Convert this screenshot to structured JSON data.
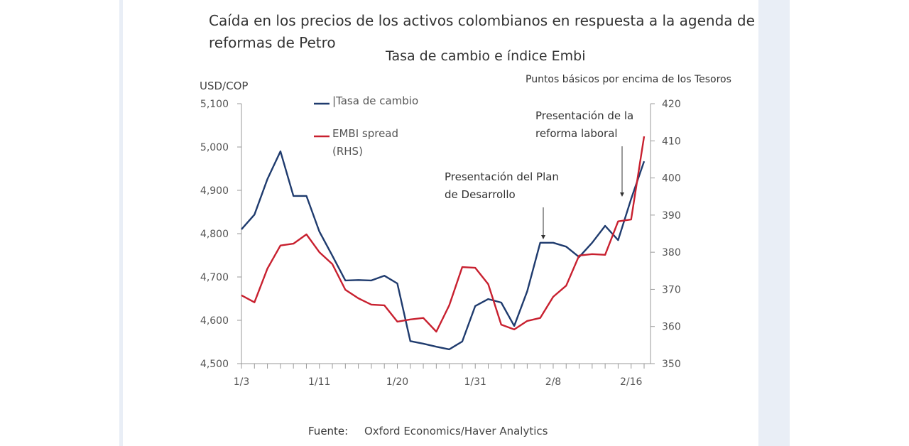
{
  "chart_data": {
    "type": "line",
    "title": "Caída en los precios de los activos colombianos en respuesta a la agenda de reformas de Petro",
    "subtitle": "Tasa de cambio e índice Embi",
    "ylabel_left": "USD/COP",
    "ylabel_right": "Puntos básicos por encima de los Tesoros",
    "ylim_left": [
      4500,
      5100
    ],
    "yticks_left": [
      "4,500",
      "4,600",
      "4,700",
      "4,800",
      "4,900",
      "5,000",
      "5,100"
    ],
    "ylim_right": [
      350,
      420
    ],
    "yticks_right": [
      "350",
      "360",
      "370",
      "380",
      "390",
      "400",
      "410",
      "420"
    ],
    "x_tick_labels": [
      {
        "index": 0,
        "label": "1/3"
      },
      {
        "index": 6,
        "label": "1/11"
      },
      {
        "index": 12,
        "label": "1/20"
      },
      {
        "index": 18,
        "label": "1/31"
      },
      {
        "index": 24,
        "label": "2/8"
      },
      {
        "index": 30,
        "label": "2/16"
      }
    ],
    "grid": false,
    "legend_placement": "top-left",
    "series": [
      {
        "name": "Tasa de cambio",
        "axis": "left",
        "color": "#1f3b6e",
        "values": [
          4810,
          4844,
          4926,
          4990,
          4887,
          4887,
          4805,
          4749,
          4692,
          4693,
          4692,
          4703,
          4685,
          4552,
          4546,
          4539,
          4533,
          4551,
          4633,
          4649,
          4641,
          4587,
          4667,
          4779,
          4779,
          4770,
          4746,
          4779,
          4818,
          4785,
          4880,
          4967
        ]
      },
      {
        "name": "EMBI spread\n(RHS)",
        "legend_lines": [
          "EMBI spread",
          "(RHS)"
        ],
        "axis": "right",
        "color": "#c8202f",
        "values": [
          368.4,
          366.5,
          375.6,
          381.8,
          382.3,
          384.8,
          380,
          376.8,
          369.9,
          367.6,
          365.9,
          365.7,
          361.3,
          361.9,
          362.3,
          358.6,
          365.7,
          376,
          375.8,
          371.4,
          360.5,
          359.2,
          361.5,
          362.3,
          368,
          371,
          379.1,
          379.5,
          379.3,
          388.3,
          388.8,
          411.2
        ]
      }
    ],
    "annotations": [
      {
        "lines": [
          "Presentación del Plan",
          "de Desarrollo"
        ],
        "index": 24
      },
      {
        "lines": [
          "Presentación de la",
          "reforma laboral"
        ],
        "index": 30
      }
    ],
    "source_label": "Fuente:",
    "source": "Oxford Economics/Haver Analytics"
  }
}
